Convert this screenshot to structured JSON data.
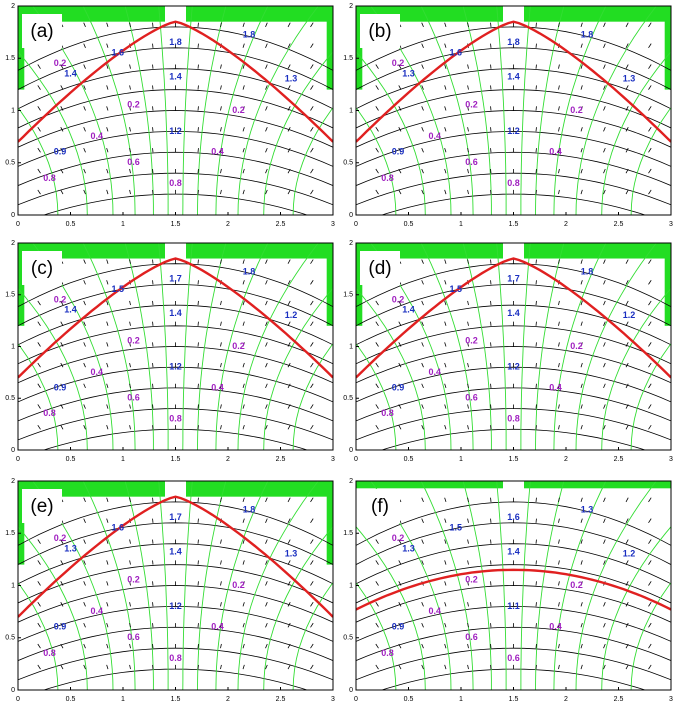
{
  "panels": [
    {
      "label": "(a)",
      "xlim": [
        0,
        3
      ],
      "ylim": [
        0,
        2
      ],
      "xticks": [
        0,
        0.5,
        1,
        1.5,
        2,
        2.5,
        3
      ],
      "yticks": [
        0,
        0.5,
        1,
        1.5,
        2
      ],
      "blue_labels": [
        "1.8",
        "1.6",
        "1.8",
        "1.4",
        "1.4",
        "1.3",
        "1.2",
        "0.9"
      ],
      "purple_labels": [
        "0.2",
        "0.2",
        "0.2",
        "0.4",
        "0.4",
        "0.6",
        "0.8",
        "0.8"
      ]
    },
    {
      "label": "(b)",
      "xlim": [
        0,
        3
      ],
      "ylim": [
        0,
        2
      ],
      "xticks": [
        0,
        0.5,
        1,
        1.5,
        2,
        2.5,
        3
      ],
      "yticks": [
        0,
        0.5,
        1,
        1.5,
        2
      ],
      "blue_labels": [
        "1.8",
        "1.6",
        "1.8",
        "1.4",
        "1.3",
        "1.3",
        "1.2",
        "0.9"
      ],
      "purple_labels": [
        "0.2",
        "0.2",
        "0.2",
        "0.4",
        "0.4",
        "0.6",
        "0.8",
        "0.8"
      ]
    },
    {
      "label": "(c)",
      "xlim": [
        0,
        3
      ],
      "ylim": [
        0,
        2
      ],
      "xticks": [
        0,
        0.5,
        1,
        1.5,
        2,
        2.5,
        3
      ],
      "yticks": [
        0,
        0.5,
        1,
        1.5,
        2
      ],
      "blue_labels": [
        "1.7",
        "1.5",
        "1.8",
        "1.4",
        "1.4",
        "1.2",
        "1.2",
        "0.9"
      ],
      "purple_labels": [
        "0.2",
        "0.2",
        "0.2",
        "0.4",
        "0.4",
        "0.6",
        "0.8",
        "0.8"
      ]
    },
    {
      "label": "(d)",
      "xlim": [
        0,
        3
      ],
      "ylim": [
        0,
        2
      ],
      "xticks": [
        0,
        0.5,
        1,
        1.5,
        2,
        2.5,
        3
      ],
      "yticks": [
        0,
        0.5,
        1,
        1.5,
        2
      ],
      "blue_labels": [
        "1.7",
        "1.5",
        "1.8",
        "1.4",
        "1.4",
        "1.2",
        "1.2",
        "0.9"
      ],
      "purple_labels": [
        "0.2",
        "0.2",
        "0.2",
        "0.4",
        "0.4",
        "0.6",
        "0.8",
        "0.8"
      ]
    },
    {
      "label": "(e)",
      "xlim": [
        0,
        3
      ],
      "ylim": [
        0,
        2
      ],
      "xticks": [
        0,
        0.5,
        1,
        1.5,
        2,
        2.5,
        3
      ],
      "yticks": [
        0,
        0.5,
        1,
        1.5,
        2
      ],
      "blue_labels": [
        "1.7",
        "1.6",
        "1.8",
        "1.4",
        "1.3",
        "1.3",
        "1.2",
        "0.9"
      ],
      "purple_labels": [
        "0.2",
        "0.2",
        "0.2",
        "0.4",
        "0.4",
        "0.6",
        "0.8",
        "0.8"
      ]
    },
    {
      "label": "(f)",
      "xlim": [
        0,
        3
      ],
      "ylim": [
        0,
        2
      ],
      "xticks": [
        0,
        0.5,
        1,
        1.5,
        2,
        2.5,
        3
      ],
      "yticks": [
        0,
        0.5,
        1,
        1.5,
        2
      ],
      "blue_labels": [
        "1.6",
        "1.5",
        "1.3",
        "1.4",
        "1.3",
        "1.2",
        "1.1",
        "0.9"
      ],
      "purple_labels": [
        "0.2",
        "0.2",
        "0.2",
        "0.4",
        "0.4",
        "0.6",
        "0.8",
        "0.6"
      ]
    }
  ]
}
